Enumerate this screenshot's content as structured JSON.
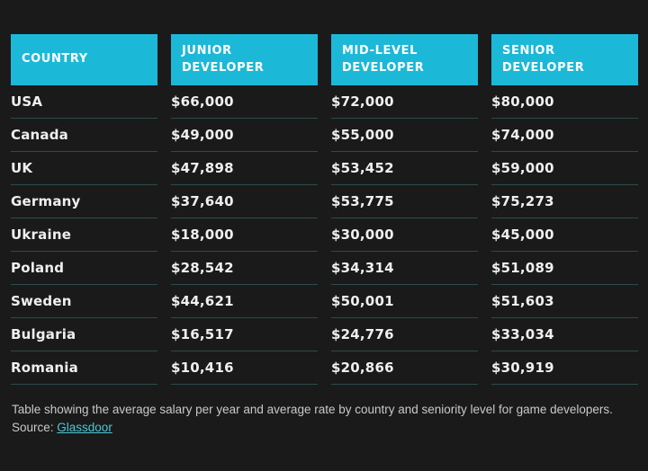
{
  "page": {
    "background_color": "#1a1a1a",
    "accent_color": "#1cb8d8",
    "separator_color": "#2b4c4b",
    "link_color": "#4cc8d9"
  },
  "table": {
    "columns": [
      "COUNTRY",
      "JUNIOR DEVELOPER",
      "MID-LEVEL DEVELOPER",
      "SENIOR DEVELOPER"
    ],
    "rows": [
      {
        "country": "USA",
        "junior": "$66,000",
        "mid": "$72,000",
        "senior": "$80,000"
      },
      {
        "country": "Canada",
        "junior": "$49,000",
        "mid": "$55,000",
        "senior": "$74,000"
      },
      {
        "country": "UK",
        "junior": "$47,898",
        "mid": "$53,452",
        "senior": "$59,000"
      },
      {
        "country": "Germany",
        "junior": "$37,640",
        "mid": "$53,775",
        "senior": "$75,273"
      },
      {
        "country": "Ukraine",
        "junior": "$18,000",
        "mid": "$30,000",
        "senior": "$45,000"
      },
      {
        "country": "Poland",
        "junior": "$28,542",
        "mid": "$34,314",
        "senior": "$51,089"
      },
      {
        "country": "Sweden",
        "junior": "$44,621",
        "mid": "$50,001",
        "senior": "$51,603"
      },
      {
        "country": "Bulgaria",
        "junior": "$16,517",
        "mid": "$24,776",
        "senior": "$33,034"
      },
      {
        "country": "Romania",
        "junior": "$10,416",
        "mid": "$20,866",
        "senior": "$30,919"
      }
    ]
  },
  "caption": {
    "text": "Table showing the average salary per year and average rate by country and seniority level for game developers. Source: ",
    "link_label": "Glassdoor"
  },
  "chart_data": {
    "type": "table",
    "title": "Average salary per year by country and seniority level for game developers",
    "columns": [
      "Country",
      "Junior Developer",
      "Mid-Level Developer",
      "Senior Developer"
    ],
    "categories": [
      "USA",
      "Canada",
      "UK",
      "Germany",
      "Ukraine",
      "Poland",
      "Sweden",
      "Bulgaria",
      "Romania"
    ],
    "series": [
      {
        "name": "Junior Developer",
        "values": [
          66000,
          49000,
          47898,
          37640,
          18000,
          28542,
          44621,
          16517,
          10416
        ]
      },
      {
        "name": "Mid-Level Developer",
        "values": [
          72000,
          55000,
          53452,
          53775,
          30000,
          34314,
          50001,
          24776,
          20866
        ]
      },
      {
        "name": "Senior Developer",
        "values": [
          80000,
          74000,
          59000,
          75273,
          45000,
          51089,
          51603,
          33034,
          30919
        ]
      }
    ],
    "unit": "USD per year",
    "source": "Glassdoor"
  }
}
